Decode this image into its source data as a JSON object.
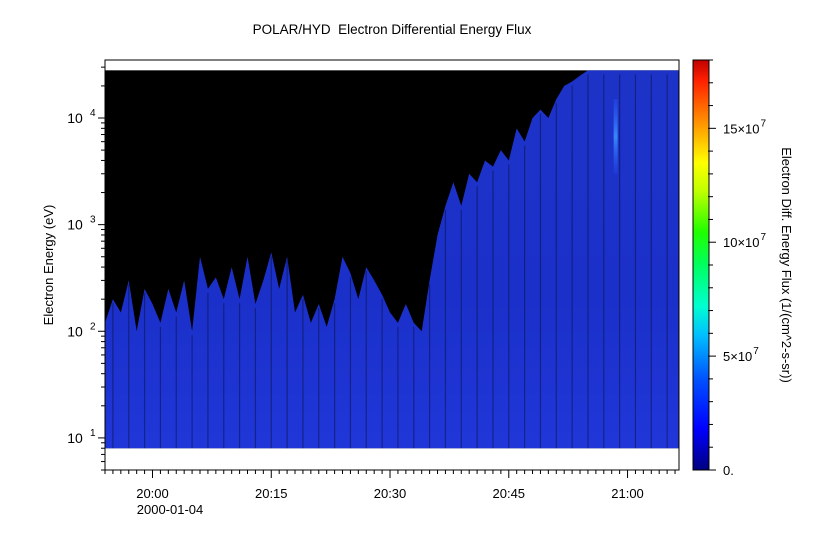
{
  "chart_data": {
    "type": "heatmap",
    "title": "POLAR/HYD  Electron Differential Energy Flux",
    "xlabel": "",
    "ylabel": "Electron Energy (eV)",
    "colorbar_label": "Electron Diff. Energy Flux (1/(cm^2-s-sr))",
    "x_range": [
      "19:54",
      "21:06"
    ],
    "x_ticks": [
      {
        "label": "20:00",
        "minutes": 360
      },
      {
        "label": "20:15",
        "minutes": 375
      },
      {
        "label": "20:30",
        "minutes": 390
      },
      {
        "label": "20:45",
        "minutes": 405
      },
      {
        "label": "21:00",
        "minutes": 420
      }
    ],
    "x_minutes_range": [
      354,
      426.5
    ],
    "date_label": "2000-01-04",
    "y_scale": "log",
    "y_range_eV": [
      5,
      35000
    ],
    "y_ticks": [
      {
        "base": "10",
        "exp": "1",
        "value": 10
      },
      {
        "base": "10",
        "exp": "2",
        "value": 100
      },
      {
        "base": "10",
        "exp": "3",
        "value": 1000
      },
      {
        "base": "10",
        "exp": "4",
        "value": 10000
      }
    ],
    "energy_range_measured_eV": [
      8,
      28000
    ],
    "colorbar": {
      "min": 0,
      "max": 180000000,
      "ticks": [
        {
          "label": "0.",
          "value": 0
        },
        {
          "label": "5×10",
          "exp": "7",
          "value": 50000000
        },
        {
          "label": "10×10",
          "exp": "7",
          "value": 100000000
        },
        {
          "label": "15×10",
          "exp": "7",
          "value": 150000000
        }
      ],
      "colors": [
        "#00007f",
        "#0000ff",
        "#0080ff",
        "#00ffff",
        "#00ff80",
        "#00ff00",
        "#80ff00",
        "#ffff00",
        "#ff8000",
        "#ff0000",
        "#c80000"
      ]
    },
    "fill_color_no_data": "#000000",
    "dominant_flux_color": "#1a2fc8",
    "upper_edge_eV": [
      [
        354,
        120
      ],
      [
        355,
        200
      ],
      [
        356,
        150
      ],
      [
        357,
        300
      ],
      [
        358,
        100
      ],
      [
        359,
        250
      ],
      [
        360,
        180
      ],
      [
        361,
        120
      ],
      [
        362,
        250
      ],
      [
        363,
        150
      ],
      [
        364,
        300
      ],
      [
        365,
        100
      ],
      [
        366,
        500
      ],
      [
        367,
        250
      ],
      [
        368,
        320
      ],
      [
        369,
        200
      ],
      [
        370,
        400
      ],
      [
        371,
        200
      ],
      [
        372,
        500
      ],
      [
        373,
        180
      ],
      [
        374,
        300
      ],
      [
        375,
        550
      ],
      [
        376,
        250
      ],
      [
        377,
        500
      ],
      [
        378,
        150
      ],
      [
        379,
        220
      ],
      [
        380,
        120
      ],
      [
        381,
        180
      ],
      [
        382,
        110
      ],
      [
        383,
        200
      ],
      [
        384,
        500
      ],
      [
        385,
        350
      ],
      [
        386,
        200
      ],
      [
        387,
        400
      ],
      [
        388,
        300
      ],
      [
        389,
        220
      ],
      [
        390,
        150
      ],
      [
        391,
        120
      ],
      [
        392,
        180
      ],
      [
        393,
        120
      ],
      [
        394,
        100
      ],
      [
        395,
        300
      ],
      [
        396,
        800
      ],
      [
        397,
        1500
      ],
      [
        398,
        2500
      ],
      [
        399,
        1500
      ],
      [
        400,
        3000
      ],
      [
        401,
        2500
      ],
      [
        402,
        4000
      ],
      [
        403,
        3500
      ],
      [
        404,
        5000
      ],
      [
        405,
        4000
      ],
      [
        406,
        8000
      ],
      [
        407,
        6000
      ],
      [
        408,
        10000
      ],
      [
        409,
        12000
      ],
      [
        410,
        10000
      ],
      [
        411,
        15000
      ],
      [
        412,
        20000
      ],
      [
        413,
        22000
      ],
      [
        414,
        25000
      ],
      [
        415,
        28000
      ],
      [
        416,
        28000
      ],
      [
        417,
        28000
      ],
      [
        418,
        28000
      ],
      [
        419,
        28000
      ],
      [
        420,
        28000
      ],
      [
        421,
        28000
      ],
      [
        422,
        28000
      ],
      [
        423,
        28000
      ],
      [
        424,
        28000
      ],
      [
        425,
        28000
      ],
      [
        426,
        28000
      ],
      [
        426.5,
        28000
      ]
    ],
    "hot_spot": {
      "minutes": 418.5,
      "energy_eV": [
        3000,
        15000
      ],
      "flux": 35000000
    }
  }
}
